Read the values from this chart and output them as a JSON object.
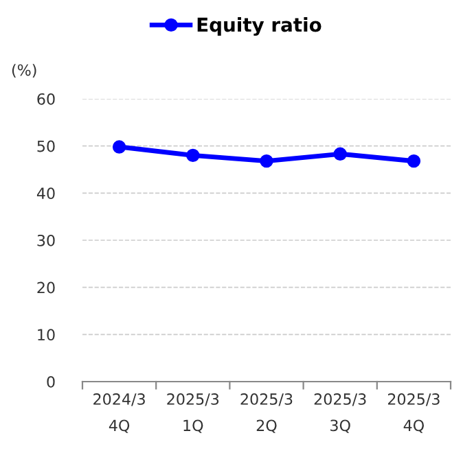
{
  "chart_data": {
    "type": "line",
    "ylabel": "(%)",
    "categories": [
      "2024/3\n4Q",
      "2025/3\n1Q",
      "2025/3\n2Q",
      "2025/3\n3Q",
      "2025/3\n4Q"
    ],
    "series": [
      {
        "name": "Equity ratio",
        "color": "#0000ff",
        "values": [
          49.8,
          48.0,
          46.8,
          48.3,
          46.8
        ]
      }
    ],
    "ylim": [
      0,
      60
    ],
    "yticks": [
      0,
      10,
      20,
      30,
      40,
      50,
      60
    ],
    "grid": "y",
    "legend": "top",
    "marker": "circle",
    "line_style": "solid"
  }
}
